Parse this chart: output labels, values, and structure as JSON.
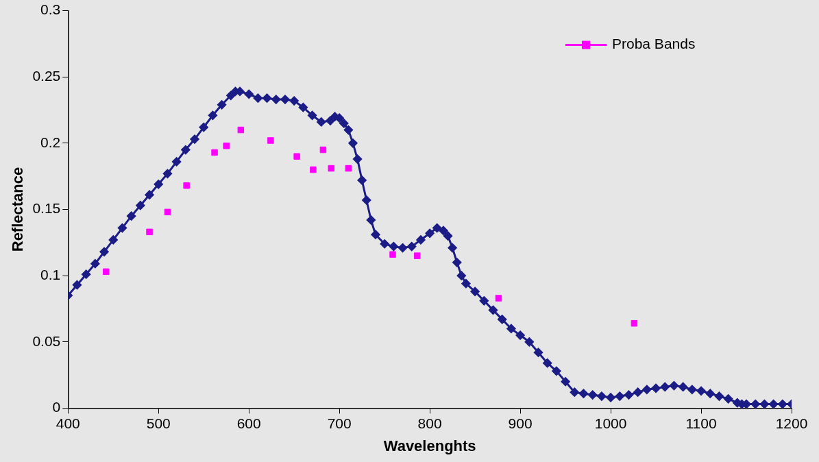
{
  "chart_data": {
    "type": "line",
    "xlabel": "Wavelenghts",
    "ylabel": "Reflectance",
    "xlim": [
      400,
      1200
    ],
    "xticks": [
      400,
      500,
      600,
      700,
      800,
      900,
      1000,
      1100,
      1200
    ],
    "ylim": [
      0,
      0.3
    ],
    "yticks": [
      0,
      0.05,
      0.1,
      0.15,
      0.2,
      0.25,
      0.3
    ],
    "grid": false,
    "legend": "top right",
    "series": [
      {
        "marker": "diamond",
        "color": "#1c1c86",
        "x": [
          400,
          410,
          420,
          430,
          440,
          450,
          460,
          470,
          480,
          490,
          500,
          510,
          520,
          530,
          540,
          550,
          560,
          570,
          580,
          585,
          590,
          600,
          610,
          620,
          630,
          640,
          650,
          660,
          670,
          680,
          690,
          695,
          700,
          705,
          710,
          715,
          720,
          725,
          730,
          735,
          740,
          750,
          760,
          770,
          780,
          790,
          800,
          808,
          815,
          820,
          825,
          830,
          835,
          840,
          850,
          860,
          870,
          880,
          890,
          900,
          910,
          920,
          930,
          940,
          950,
          960,
          970,
          980,
          990,
          1000,
          1010,
          1020,
          1030,
          1040,
          1050,
          1060,
          1070,
          1080,
          1090,
          1100,
          1110,
          1120,
          1130,
          1140,
          1145,
          1150,
          1160,
          1170,
          1180,
          1190,
          1200
        ],
        "values": [
          0.085,
          0.093,
          0.101,
          0.109,
          0.118,
          0.127,
          0.136,
          0.145,
          0.153,
          0.161,
          0.169,
          0.177,
          0.186,
          0.195,
          0.203,
          0.212,
          0.221,
          0.229,
          0.236,
          0.239,
          0.239,
          0.237,
          0.234,
          0.234,
          0.233,
          0.233,
          0.232,
          0.227,
          0.221,
          0.216,
          0.217,
          0.22,
          0.219,
          0.215,
          0.21,
          0.2,
          0.188,
          0.172,
          0.157,
          0.142,
          0.131,
          0.124,
          0.122,
          0.121,
          0.122,
          0.127,
          0.132,
          0.136,
          0.134,
          0.13,
          0.121,
          0.11,
          0.1,
          0.094,
          0.088,
          0.081,
          0.074,
          0.067,
          0.06,
          0.055,
          0.05,
          0.042,
          0.034,
          0.028,
          0.02,
          0.012,
          0.011,
          0.01,
          0.009,
          0.008,
          0.009,
          0.01,
          0.012,
          0.014,
          0.015,
          0.016,
          0.017,
          0.016,
          0.014,
          0.013,
          0.011,
          0.009,
          0.007,
          0.004,
          0.003,
          0.003,
          0.003,
          0.003,
          0.003,
          0.003,
          0.003
        ]
      },
      {
        "type": "scatter",
        "marker": "square",
        "name": "Proba Bands",
        "color": "#ff00ff",
        "x": [
          442,
          490,
          510,
          531,
          562,
          575,
          591,
          624,
          653,
          671,
          682,
          691,
          710,
          759,
          786,
          876,
          1026
        ],
        "values": [
          0.103,
          0.133,
          0.148,
          0.168,
          0.193,
          0.198,
          0.21,
          0.202,
          0.19,
          0.18,
          0.195,
          0.181,
          0.181,
          0.116,
          0.115,
          0.083,
          0.064
        ]
      }
    ]
  }
}
